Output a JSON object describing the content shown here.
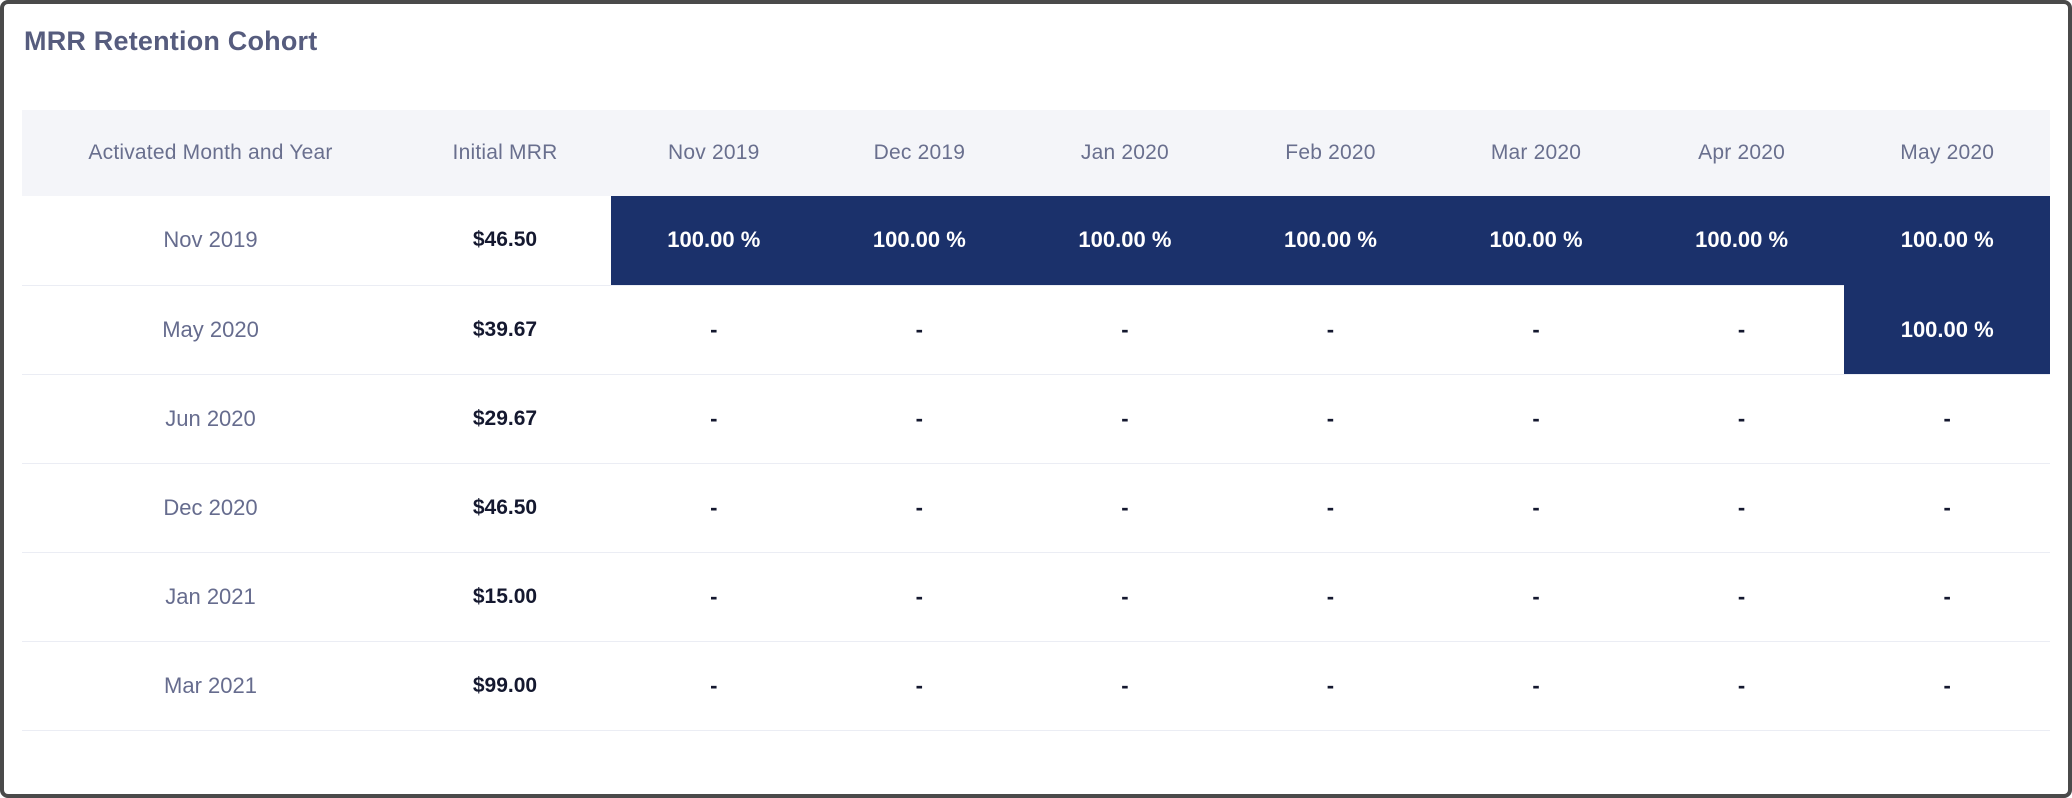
{
  "widget": {
    "title": "MRR Retention Cohort"
  },
  "colors": {
    "highlight_navy": "#1b316b",
    "header_background": "#f4f5f9",
    "slate_text": "#696f8e",
    "dark_value_text": "#14182f",
    "frame_border": "#4a4a4a",
    "row_separator": "#ebedf4"
  },
  "table": {
    "columns": [
      "Activated Month and Year",
      "Initial MRR",
      "Nov 2019",
      "Dec 2019",
      "Jan 2020",
      "Feb 2020",
      "Mar 2020",
      "Apr 2020",
      "May 2020"
    ],
    "rows": [
      {
        "cohort": "Nov 2019",
        "initial_mrr": "$46.50",
        "cells": [
          {
            "v": "100.00 %",
            "hl": true
          },
          {
            "v": "100.00 %",
            "hl": true
          },
          {
            "v": "100.00 %",
            "hl": true
          },
          {
            "v": "100.00 %",
            "hl": true
          },
          {
            "v": "100.00 %",
            "hl": true
          },
          {
            "v": "100.00 %",
            "hl": true
          },
          {
            "v": "100.00 %",
            "hl": true
          }
        ]
      },
      {
        "cohort": "May 2020",
        "initial_mrr": "$39.67",
        "cells": [
          {
            "v": "-",
            "hl": false
          },
          {
            "v": "-",
            "hl": false
          },
          {
            "v": "-",
            "hl": false
          },
          {
            "v": "-",
            "hl": false
          },
          {
            "v": "-",
            "hl": false
          },
          {
            "v": "-",
            "hl": false
          },
          {
            "v": "100.00 %",
            "hl": true
          }
        ]
      },
      {
        "cohort": "Jun 2020",
        "initial_mrr": "$29.67",
        "cells": [
          {
            "v": "-",
            "hl": false
          },
          {
            "v": "-",
            "hl": false
          },
          {
            "v": "-",
            "hl": false
          },
          {
            "v": "-",
            "hl": false
          },
          {
            "v": "-",
            "hl": false
          },
          {
            "v": "-",
            "hl": false
          },
          {
            "v": "-",
            "hl": false
          }
        ]
      },
      {
        "cohort": "Dec 2020",
        "initial_mrr": "$46.50",
        "cells": [
          {
            "v": "-",
            "hl": false
          },
          {
            "v": "-",
            "hl": false
          },
          {
            "v": "-",
            "hl": false
          },
          {
            "v": "-",
            "hl": false
          },
          {
            "v": "-",
            "hl": false
          },
          {
            "v": "-",
            "hl": false
          },
          {
            "v": "-",
            "hl": false
          }
        ]
      },
      {
        "cohort": "Jan 2021",
        "initial_mrr": "$15.00",
        "cells": [
          {
            "v": "-",
            "hl": false
          },
          {
            "v": "-",
            "hl": false
          },
          {
            "v": "-",
            "hl": false
          },
          {
            "v": "-",
            "hl": false
          },
          {
            "v": "-",
            "hl": false
          },
          {
            "v": "-",
            "hl": false
          },
          {
            "v": "-",
            "hl": false
          }
        ]
      },
      {
        "cohort": "Mar 2021",
        "initial_mrr": "$99.00",
        "cells": [
          {
            "v": "-",
            "hl": false
          },
          {
            "v": "-",
            "hl": false
          },
          {
            "v": "-",
            "hl": false
          },
          {
            "v": "-",
            "hl": false
          },
          {
            "v": "-",
            "hl": false
          },
          {
            "v": "-",
            "hl": false
          },
          {
            "v": "-",
            "hl": false
          }
        ]
      }
    ]
  }
}
